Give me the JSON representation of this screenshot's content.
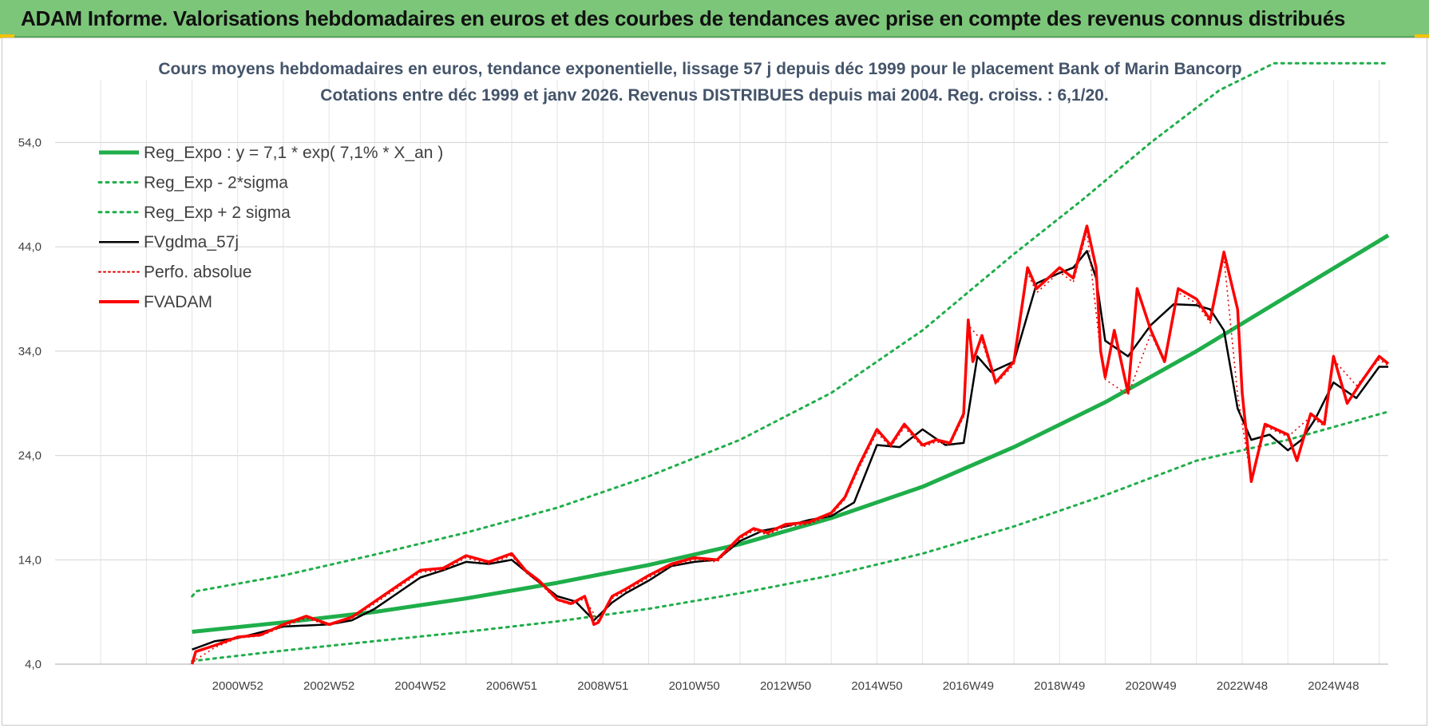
{
  "header": {
    "title": "ADAM Informe. Valorisations hebdomadaires en euros et des courbes de tendances avec prise en compte des revenus connus distribués"
  },
  "colors": {
    "banner": "#7cc67a",
    "reg_expo": "#1fae4a",
    "sigma_bands": "#1fae4a",
    "fvgdma": "#000000",
    "perfo": "#e00000",
    "fvadam": "#ff0000",
    "grid": "#d9d9d9"
  },
  "chart_data": {
    "type": "line",
    "title": [
      "Cours moyens hebdomadaires en euros, tendance exponentielle, lissage 57 j depuis déc 1999 pour le placement Bank of Marin Bancorp",
      "Cotations entre déc 1999 et janv 2026.  Revenus DISTRIBUES depuis mai 2004. Reg. croiss. : 6,1/20."
    ],
    "y_ticks": [
      "4,0",
      "14,0",
      "24,0",
      "34,0",
      "44,0",
      "54,0"
    ],
    "ylim": [
      4,
      60
    ],
    "x_ticks": [
      "2000W52",
      "2002W52",
      "2004W52",
      "2006W51",
      "2008W51",
      "2010W50",
      "2012W50",
      "2014W50",
      "2016W49",
      "2018W49",
      "2020W49",
      "2022W48",
      "2024W48"
    ],
    "x_tick_years": [
      2001.0,
      2003.0,
      2005.0,
      2007.0,
      2009.0,
      2011.0,
      2013.0,
      2015.0,
      2017.0,
      2019.0,
      2021.0,
      2023.0,
      2025.0
    ],
    "xlim": [
      1997.0,
      2026.2
    ],
    "grid": true,
    "legend_position": "top-left",
    "legend": [
      {
        "label": "Reg_Expo : y = 7,1 * exp( 7,1% *  X_an )",
        "style": "thick"
      },
      {
        "label": "Reg_Exp - 2*sigma",
        "style": "dotted"
      },
      {
        "label": "Reg_Exp + 2 sigma",
        "style": "dotted"
      },
      {
        "label": "FVgdma_57j",
        "style": "solid"
      },
      {
        "label": "Perfo. absolue",
        "style": "dotted"
      },
      {
        "label": "FVADAM",
        "style": "solid-thick"
      }
    ],
    "series": [
      {
        "name": "Reg_Expo : y = 7,1 * exp( 7,1% *  X_an )",
        "x": [
          2000.0,
          2002.0,
          2004.0,
          2006.0,
          2008.0,
          2010.0,
          2012.0,
          2014.0,
          2016.0,
          2018.0,
          2020.0,
          2022.0,
          2024.0,
          2026.2
        ],
        "y": [
          7.1,
          8.0,
          9.0,
          10.3,
          11.8,
          13.5,
          15.5,
          18.0,
          21.0,
          24.8,
          29.1,
          34.0,
          39.3,
          45.1
        ]
      },
      {
        "name": "Reg_Exp - 2*sigma",
        "x": [
          2000.0,
          2002.0,
          2004.0,
          2006.0,
          2008.0,
          2010.0,
          2012.0,
          2014.0,
          2016.0,
          2018.0,
          2020.0,
          2022.0,
          2024.0,
          2026.2
        ],
        "y": [
          4.3,
          5.3,
          6.2,
          7.1,
          8.1,
          9.3,
          10.8,
          12.5,
          14.6,
          17.2,
          20.2,
          23.5,
          25.5,
          28.2
        ]
      },
      {
        "name": "Reg_Exp + 2 sigma",
        "x": [
          2000.0,
          2000.1,
          2002.0,
          2004.0,
          2006.0,
          2008.0,
          2010.0,
          2012.0,
          2014.0,
          2016.0,
          2018.0,
          2019.5,
          2021.0,
          2022.5,
          2023.7,
          2026.2
        ],
        "y": [
          10.5,
          11.0,
          12.5,
          14.5,
          16.6,
          19.0,
          22.0,
          25.5,
          30.0,
          36.0,
          43.3,
          48.5,
          54.0,
          59.0,
          61.6,
          61.6
        ]
      },
      {
        "name": "FVgdma_57j",
        "x": [
          2000.0,
          2000.5,
          2001.0,
          2002.0,
          2003.0,
          2003.5,
          2004.0,
          2004.5,
          2005.0,
          2005.5,
          2006.0,
          2006.5,
          2007.0,
          2007.5,
          2008.0,
          2008.4,
          2008.8,
          2009.2,
          2009.5,
          2010.0,
          2010.5,
          2011.0,
          2011.5,
          2012.0,
          2012.5,
          2013.0,
          2013.5,
          2014.0,
          2014.5,
          2015.0,
          2015.5,
          2016.0,
          2016.5,
          2016.9,
          2017.2,
          2017.5,
          2018.0,
          2018.5,
          2019.0,
          2019.3,
          2019.6,
          2019.8,
          2020.0,
          2020.5,
          2021.0,
          2021.5,
          2022.0,
          2022.3,
          2022.6,
          2022.9,
          2023.2,
          2023.6,
          2024.0,
          2024.3,
          2024.6,
          2025.0,
          2025.5,
          2026.0,
          2026.2
        ],
        "y": [
          5.4,
          6.2,
          6.5,
          7.6,
          7.8,
          8.2,
          9.3,
          10.8,
          12.3,
          13.0,
          13.8,
          13.6,
          14.0,
          12.2,
          10.5,
          10.0,
          8.2,
          9.9,
          10.8,
          12.0,
          13.4,
          13.8,
          14.0,
          15.8,
          16.8,
          17.2,
          17.8,
          18.2,
          19.5,
          25.0,
          24.8,
          26.5,
          25.0,
          25.2,
          33.5,
          32.0,
          33.0,
          40.5,
          41.5,
          42.0,
          43.6,
          41.0,
          35.0,
          33.5,
          36.5,
          38.5,
          38.4,
          38.0,
          36.0,
          28.5,
          25.5,
          26.0,
          24.5,
          25.5,
          27.5,
          31.0,
          29.5,
          32.5,
          32.5
        ]
      },
      {
        "name": "FVADAM",
        "x": [
          2000.0,
          2000.08,
          2000.5,
          2001.0,
          2001.5,
          2002.0,
          2002.5,
          2003.0,
          2003.5,
          2004.0,
          2004.5,
          2005.0,
          2005.5,
          2006.0,
          2006.5,
          2007.0,
          2007.3,
          2007.6,
          2008.0,
          2008.3,
          2008.6,
          2008.8,
          2008.9,
          2009.2,
          2009.5,
          2010.0,
          2010.5,
          2011.0,
          2011.5,
          2012.0,
          2012.3,
          2012.6,
          2013.0,
          2013.5,
          2014.0,
          2014.3,
          2014.6,
          2015.0,
          2015.3,
          2015.6,
          2016.0,
          2016.3,
          2016.6,
          2016.9,
          2017.0,
          2017.1,
          2017.3,
          2017.6,
          2018.0,
          2018.3,
          2018.5,
          2019.0,
          2019.3,
          2019.6,
          2019.8,
          2019.9,
          2020.0,
          2020.2,
          2020.5,
          2020.7,
          2021.0,
          2021.3,
          2021.6,
          2022.0,
          2022.3,
          2022.6,
          2022.9,
          2023.0,
          2023.2,
          2023.5,
          2024.0,
          2024.2,
          2024.5,
          2024.8,
          2025.0,
          2025.3,
          2025.6,
          2026.0,
          2026.2
        ],
        "y": [
          4.0,
          5.2,
          5.8,
          6.6,
          6.8,
          7.8,
          8.6,
          7.8,
          8.5,
          10.0,
          11.5,
          13.0,
          13.2,
          14.4,
          13.8,
          14.6,
          13.0,
          12.0,
          10.2,
          9.8,
          10.5,
          7.8,
          8.0,
          10.5,
          11.2,
          12.5,
          13.6,
          14.2,
          14.0,
          16.2,
          17.0,
          16.6,
          17.4,
          17.6,
          18.5,
          20.0,
          23.0,
          26.5,
          25.0,
          27.0,
          25.0,
          25.5,
          25.2,
          28.0,
          37.0,
          33.0,
          35.5,
          31.0,
          33.0,
          42.0,
          40.0,
          42.0,
          41.0,
          46.0,
          42.0,
          34.0,
          31.5,
          36.0,
          30.0,
          40.0,
          36.0,
          33.0,
          40.0,
          39.0,
          37.0,
          43.5,
          38.0,
          30.0,
          21.5,
          27.0,
          26.0,
          23.5,
          28.0,
          27.0,
          33.5,
          29.0,
          31.0,
          33.5,
          32.8
        ]
      },
      {
        "name": "Perfo. absolue",
        "x": [
          2000.0,
          2000.5,
          2001.0,
          2001.5,
          2002.0,
          2002.5,
          2003.0,
          2003.5,
          2004.0,
          2004.5,
          2005.0,
          2005.5,
          2006.0,
          2006.5,
          2007.0,
          2007.3,
          2007.6,
          2008.0,
          2008.3,
          2008.6,
          2008.9,
          2009.2,
          2009.5,
          2010.0,
          2010.5,
          2011.0,
          2011.5,
          2012.0,
          2012.3,
          2012.6,
          2013.0,
          2013.5,
          2014.0,
          2014.3,
          2014.6,
          2015.0,
          2015.3,
          2015.6,
          2016.0,
          2016.3,
          2016.6,
          2016.9,
          2017.0,
          2017.3,
          2017.6,
          2018.0,
          2018.3,
          2018.5,
          2019.0,
          2019.3,
          2019.6,
          2019.9,
          2020.0,
          2020.5,
          2021.0,
          2021.3,
          2021.6,
          2022.0,
          2022.3,
          2022.6,
          2022.9,
          2023.2,
          2023.5,
          2024.0,
          2024.5,
          2024.8,
          2025.0,
          2025.5,
          2026.0,
          2026.2
        ],
        "y": [
          4.2,
          5.6,
          6.5,
          6.7,
          7.6,
          8.4,
          7.7,
          8.4,
          9.8,
          11.3,
          12.8,
          13.0,
          14.2,
          13.6,
          14.4,
          12.8,
          11.8,
          10.1,
          9.7,
          10.3,
          8.1,
          10.3,
          11.0,
          12.3,
          13.4,
          14.0,
          13.8,
          16.0,
          16.8,
          16.4,
          17.2,
          17.4,
          18.3,
          19.8,
          22.7,
          26.2,
          24.8,
          26.7,
          24.8,
          25.3,
          25.0,
          27.7,
          36.5,
          35.0,
          30.8,
          32.7,
          41.5,
          39.6,
          41.6,
          40.6,
          45.5,
          33.8,
          31.3,
          29.8,
          35.7,
          32.8,
          39.6,
          38.6,
          36.7,
          43.0,
          29.8,
          21.6,
          26.8,
          25.8,
          27.7,
          26.8,
          33.2,
          30.7,
          33.2,
          32.6
        ]
      }
    ]
  }
}
